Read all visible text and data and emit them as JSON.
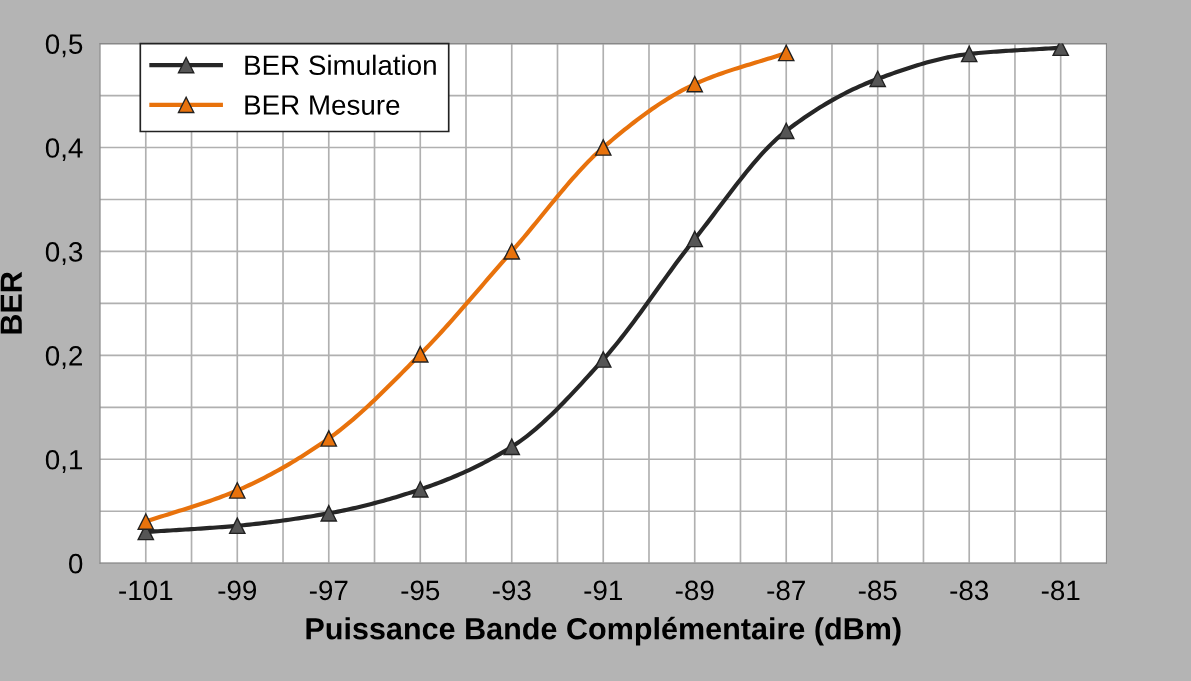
{
  "chart_data": {
    "type": "line",
    "xlabel": "Puissance Bande Complémentaire (dBm)",
    "ylabel": "BER",
    "xlim": [
      -102,
      -80
    ],
    "ylim": [
      0,
      0.5
    ],
    "xticks": [
      {
        "value": -101,
        "label": "-101"
      },
      {
        "value": -100,
        "label": null
      },
      {
        "value": -99,
        "label": "-99"
      },
      {
        "value": -98,
        "label": null
      },
      {
        "value": -97,
        "label": "-97"
      },
      {
        "value": -96,
        "label": null
      },
      {
        "value": -95,
        "label": "-95"
      },
      {
        "value": -94,
        "label": null
      },
      {
        "value": -93,
        "label": "-93"
      },
      {
        "value": -92,
        "label": null
      },
      {
        "value": -91,
        "label": "-91"
      },
      {
        "value": -90,
        "label": null
      },
      {
        "value": -89,
        "label": "-89"
      },
      {
        "value": -88,
        "label": null
      },
      {
        "value": -87,
        "label": "-87"
      },
      {
        "value": -86,
        "label": null
      },
      {
        "value": -85,
        "label": "-85"
      },
      {
        "value": -84,
        "label": null
      },
      {
        "value": -83,
        "label": "-83"
      },
      {
        "value": -82,
        "label": null
      },
      {
        "value": -81,
        "label": "-81"
      }
    ],
    "yticks": [
      0,
      {
        "value": 0.05,
        "label": null
      },
      {
        "value": 0.1,
        "label": "0,1"
      },
      {
        "value": 0.15,
        "label": null
      },
      {
        "value": 0.2,
        "label": "0,2"
      },
      {
        "value": 0.25,
        "label": null
      },
      {
        "value": 0.3,
        "label": "0,3"
      },
      {
        "value": 0.35,
        "label": null
      },
      {
        "value": 0.4,
        "label": "0,4"
      },
      {
        "value": 0.45,
        "label": null
      },
      {
        "value": 0.5,
        "label": "0,5"
      }
    ],
    "grid": true,
    "legend": "top left",
    "marker": "triangle",
    "line_style": "solid",
    "series": [
      {
        "name": "BER Simulation",
        "color": "#262626",
        "x": [
          -101,
          -99,
          -97,
          -95,
          -93,
          -91,
          -89,
          -87,
          -85,
          -83,
          -81
        ],
        "values": [
          0.03,
          0.036,
          0.048,
          0.071,
          0.112,
          0.196,
          0.312,
          0.416,
          0.466,
          0.49,
          0.496
        ]
      },
      {
        "name": "BER Mesure",
        "color": "#e8720c",
        "x": [
          -101,
          -99,
          -97,
          -95,
          -93,
          -91,
          -89,
          -87
        ],
        "values": [
          0.04,
          0.07,
          0.12,
          0.201,
          0.3,
          0.4,
          0.461,
          0.491
        ]
      }
    ]
  }
}
